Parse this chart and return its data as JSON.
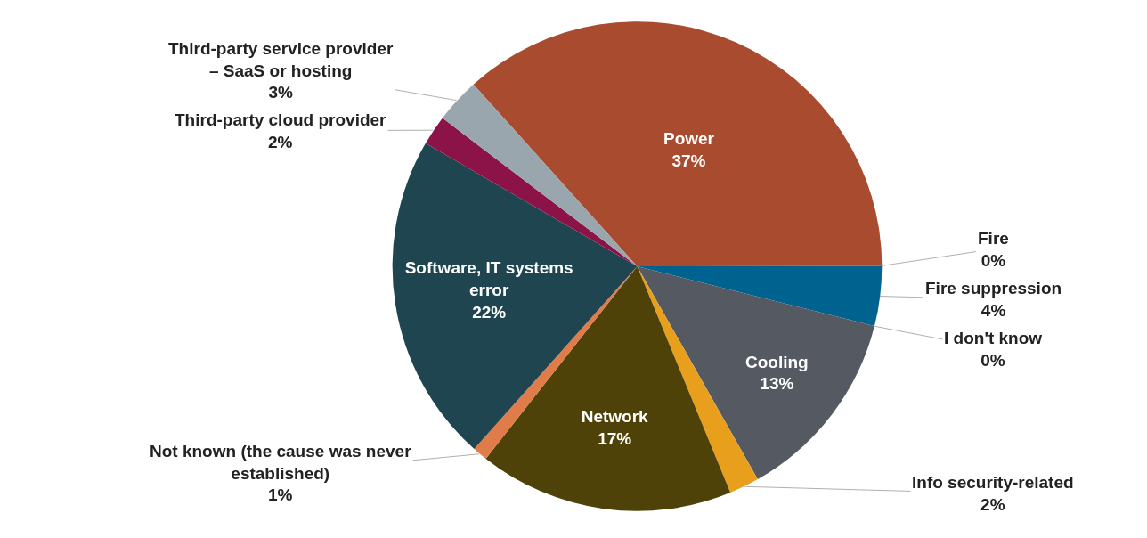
{
  "chart_data": {
    "type": "pie",
    "categories": [
      "Power",
      "Fire",
      "Fire suppression",
      "I don't know",
      "Cooling",
      "Info security-related",
      "Network",
      "Not known (the cause was never established)",
      "Software, IT systems error",
      "Third-party cloud provider",
      "Third-party service provider – SaaS or hosting"
    ],
    "values": [
      37,
      0,
      4,
      0,
      13,
      2,
      17,
      1,
      22,
      2,
      3
    ],
    "value_labels": [
      "37%",
      "0%",
      "4%",
      "0%",
      "13%",
      "2%",
      "17%",
      "1%",
      "22%",
      "2%",
      "3%"
    ],
    "colors": [
      "#a84b2e",
      "#c0504d",
      "#00628f",
      "#7f7f7f",
      "#555a62",
      "#e8a01c",
      "#4f4208",
      "#e07b4a",
      "#1f4550",
      "#8b1348",
      "#9aa6ad"
    ]
  }
}
